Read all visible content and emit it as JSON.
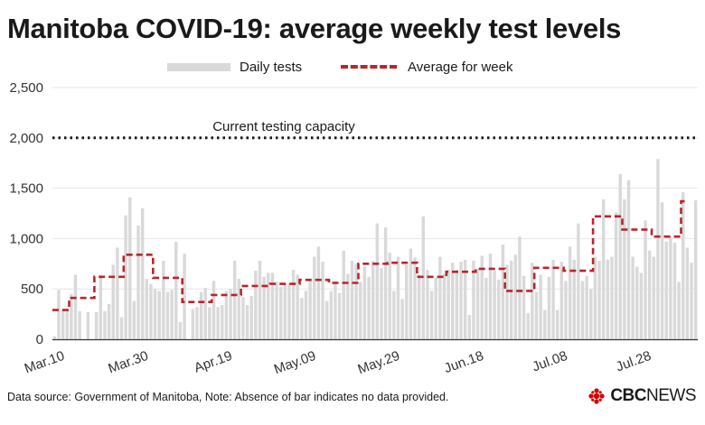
{
  "title": "Manitoba COVID-19: average weekly test levels",
  "legend": {
    "bars": "Daily tests",
    "line": "Average for week"
  },
  "footer": "Data source: Government of Manitoba,  Note: Absence of bar indicates no data provided.",
  "brand": {
    "cbc": "CBC",
    "news": "NEWS"
  },
  "colors": {
    "bar": "#d9d9d9",
    "line": "#b5272d",
    "capacity": "#1a1a1a",
    "grid": "#e6e6e6"
  },
  "chart_data": {
    "type": "bar",
    "ylim": [
      0,
      2500
    ],
    "yticks": [
      0,
      500,
      1000,
      1500,
      2000,
      2500
    ],
    "ytick_labels": [
      "0",
      "500",
      "1,000",
      "1,500",
      "2,000",
      "2,500"
    ],
    "xticks": [
      {
        "day": 0,
        "label": "Mar.10"
      },
      {
        "day": 20,
        "label": "Mar.30"
      },
      {
        "day": 40,
        "label": "Apr.19"
      },
      {
        "day": 60,
        "label": "May.09"
      },
      {
        "day": 80,
        "label": "May.29"
      },
      {
        "day": 100,
        "label": "Jun.18"
      },
      {
        "day": 120,
        "label": "Jul.08"
      },
      {
        "day": 140,
        "label": "Jul.28"
      }
    ],
    "capacity": {
      "value": 2000,
      "label": "Current testing capacity"
    },
    "series": [
      {
        "name": "Daily tests",
        "values": [
          30,
          490,
          300,
          280,
          450,
          640,
          280,
          0,
          270,
          0,
          270,
          640,
          280,
          350,
          740,
          910,
          220,
          1230,
          1410,
          380,
          1130,
          1300,
          600,
          550,
          500,
          480,
          780,
          470,
          490,
          970,
          170,
          850,
          0,
          300,
          320,
          470,
          510,
          320,
          580,
          320,
          340,
          480,
          500,
          780,
          600,
          420,
          340,
          430,
          680,
          780,
          620,
          660,
          660,
          570,
          520,
          560,
          560,
          690,
          640,
          410,
          480,
          580,
          820,
          920,
          770,
          380,
          480,
          580,
          460,
          880,
          650,
          780,
          750,
          570,
          720,
          620,
          780,
          1150,
          710,
          1110,
          860,
          480,
          820,
          400,
          740,
          900,
          810,
          640,
          1220,
          690,
          480,
          610,
          820,
          650,
          690,
          760,
          690,
          770,
          790,
          240,
          780,
          700,
          830,
          610,
          850,
          680,
          590,
          940,
          740,
          780,
          840,
          1020,
          630,
          260,
          760,
          470,
          640,
          290,
          620,
          790,
          290,
          770,
          580,
          920,
          790,
          1150,
          580,
          630,
          500,
          820,
          780,
          1390,
          790,
          820,
          1260,
          1640,
          1390,
          1580,
          820,
          720,
          660,
          1180,
          880,
          820,
          1790,
          1360,
          970,
          1020,
          960,
          570,
          1460,
          910,
          760,
          1380
        ]
      },
      {
        "name": "Average for week",
        "steps": [
          {
            "start": 0,
            "end": 4,
            "value": 290
          },
          {
            "start": 4,
            "end": 10,
            "value": 410
          },
          {
            "start": 10,
            "end": 17,
            "value": 620
          },
          {
            "start": 17,
            "end": 24,
            "value": 840
          },
          {
            "start": 24,
            "end": 31,
            "value": 610
          },
          {
            "start": 31,
            "end": 38,
            "value": 370
          },
          {
            "start": 38,
            "end": 45,
            "value": 440
          },
          {
            "start": 45,
            "end": 52,
            "value": 530
          },
          {
            "start": 52,
            "end": 59,
            "value": 550
          },
          {
            "start": 59,
            "end": 66,
            "value": 590
          },
          {
            "start": 66,
            "end": 73,
            "value": 560
          },
          {
            "start": 73,
            "end": 80,
            "value": 750
          },
          {
            "start": 80,
            "end": 87,
            "value": 760
          },
          {
            "start": 87,
            "end": 94,
            "value": 620
          },
          {
            "start": 94,
            "end": 101,
            "value": 670
          },
          {
            "start": 101,
            "end": 108,
            "value": 700
          },
          {
            "start": 108,
            "end": 115,
            "value": 480
          },
          {
            "start": 115,
            "end": 122,
            "value": 710
          },
          {
            "start": 122,
            "end": 129,
            "value": 680
          },
          {
            "start": 129,
            "end": 136,
            "value": 1220
          },
          {
            "start": 136,
            "end": 143,
            "value": 1090
          },
          {
            "start": 143,
            "end": 150,
            "value": 1020
          },
          {
            "start": 150,
            "end": 151,
            "value": 1370
          }
        ]
      }
    ]
  }
}
